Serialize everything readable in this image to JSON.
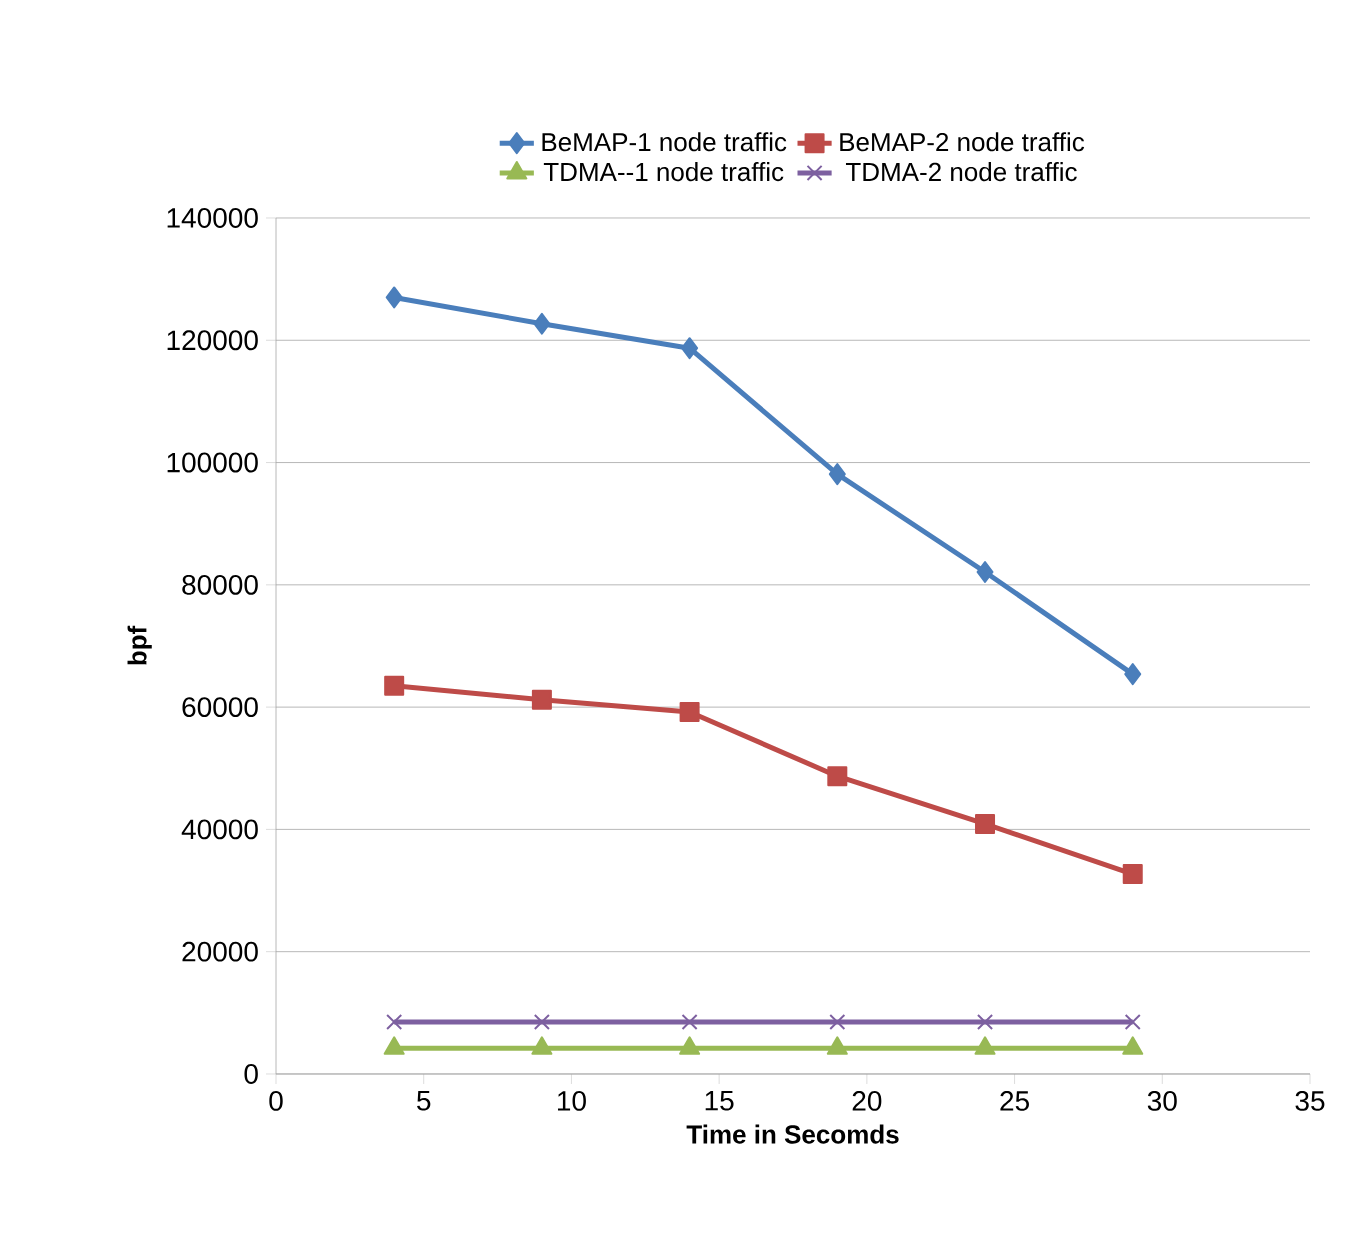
{
  "chart_data": {
    "type": "line",
    "xlabel": "Time in Secomds",
    "ylabel": "bpf",
    "x": [
      4,
      9,
      14,
      19,
      24,
      29
    ],
    "series": [
      {
        "name": "BeMAP-1 node traffic",
        "color": "#4a7ebb",
        "marker": "diamond",
        "values": [
          127000,
          122700,
          118700,
          98100,
          82100,
          65400
        ]
      },
      {
        "name": "BeMAP-2 node traffic",
        "color": "#be4b48",
        "marker": "square",
        "values": [
          63500,
          61200,
          59200,
          48700,
          40900,
          32700
        ]
      },
      {
        "name": "TDMA--1 node traffic",
        "color": "#98b954",
        "marker": "triangle",
        "values": [
          4200,
          4200,
          4200,
          4200,
          4200,
          4200
        ]
      },
      {
        "name": "TDMA-2 node traffic",
        "color": "#7d60a0",
        "marker": "cross",
        "values": [
          8500,
          8500,
          8500,
          8500,
          8500,
          8500
        ]
      }
    ],
    "xlim": [
      0,
      35
    ],
    "xticks": [
      0,
      5,
      10,
      15,
      20,
      25,
      30,
      35
    ],
    "ylim": [
      0,
      140000
    ],
    "yticks": [
      0,
      20000,
      40000,
      60000,
      80000,
      100000,
      120000,
      140000
    ],
    "grid": "y",
    "legend": "top",
    "line_style": "solid"
  }
}
